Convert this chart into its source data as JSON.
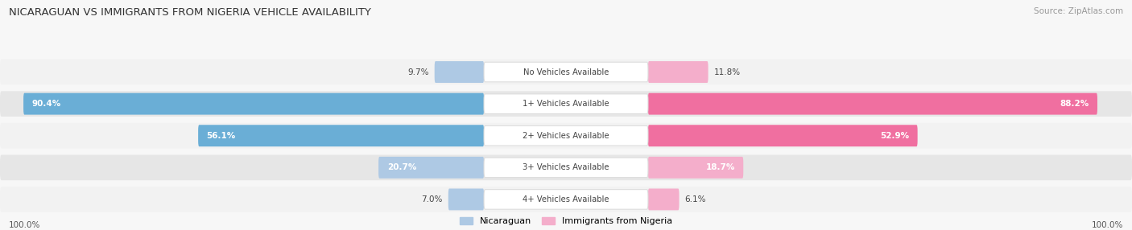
{
  "title": "NICARAGUAN VS IMMIGRANTS FROM NIGERIA VEHICLE AVAILABILITY",
  "source": "Source: ZipAtlas.com",
  "categories": [
    "No Vehicles Available",
    "1+ Vehicles Available",
    "2+ Vehicles Available",
    "3+ Vehicles Available",
    "4+ Vehicles Available"
  ],
  "nicaraguan": [
    9.7,
    90.4,
    56.1,
    20.7,
    7.0
  ],
  "nigeria": [
    11.8,
    88.2,
    52.9,
    18.7,
    6.1
  ],
  "blue_light": "#aec9e4",
  "blue_dark": "#6aaed6",
  "pink_light": "#f4aecb",
  "pink_dark": "#f06fa0",
  "row_bg_light": "#f2f2f2",
  "row_bg_dark": "#e6e6e6",
  "fig_bg": "#f7f7f7",
  "max_val": 100.0,
  "figsize": [
    14.06,
    2.86
  ],
  "dpi": 100,
  "bar_height": 0.68,
  "label_threshold": 18
}
